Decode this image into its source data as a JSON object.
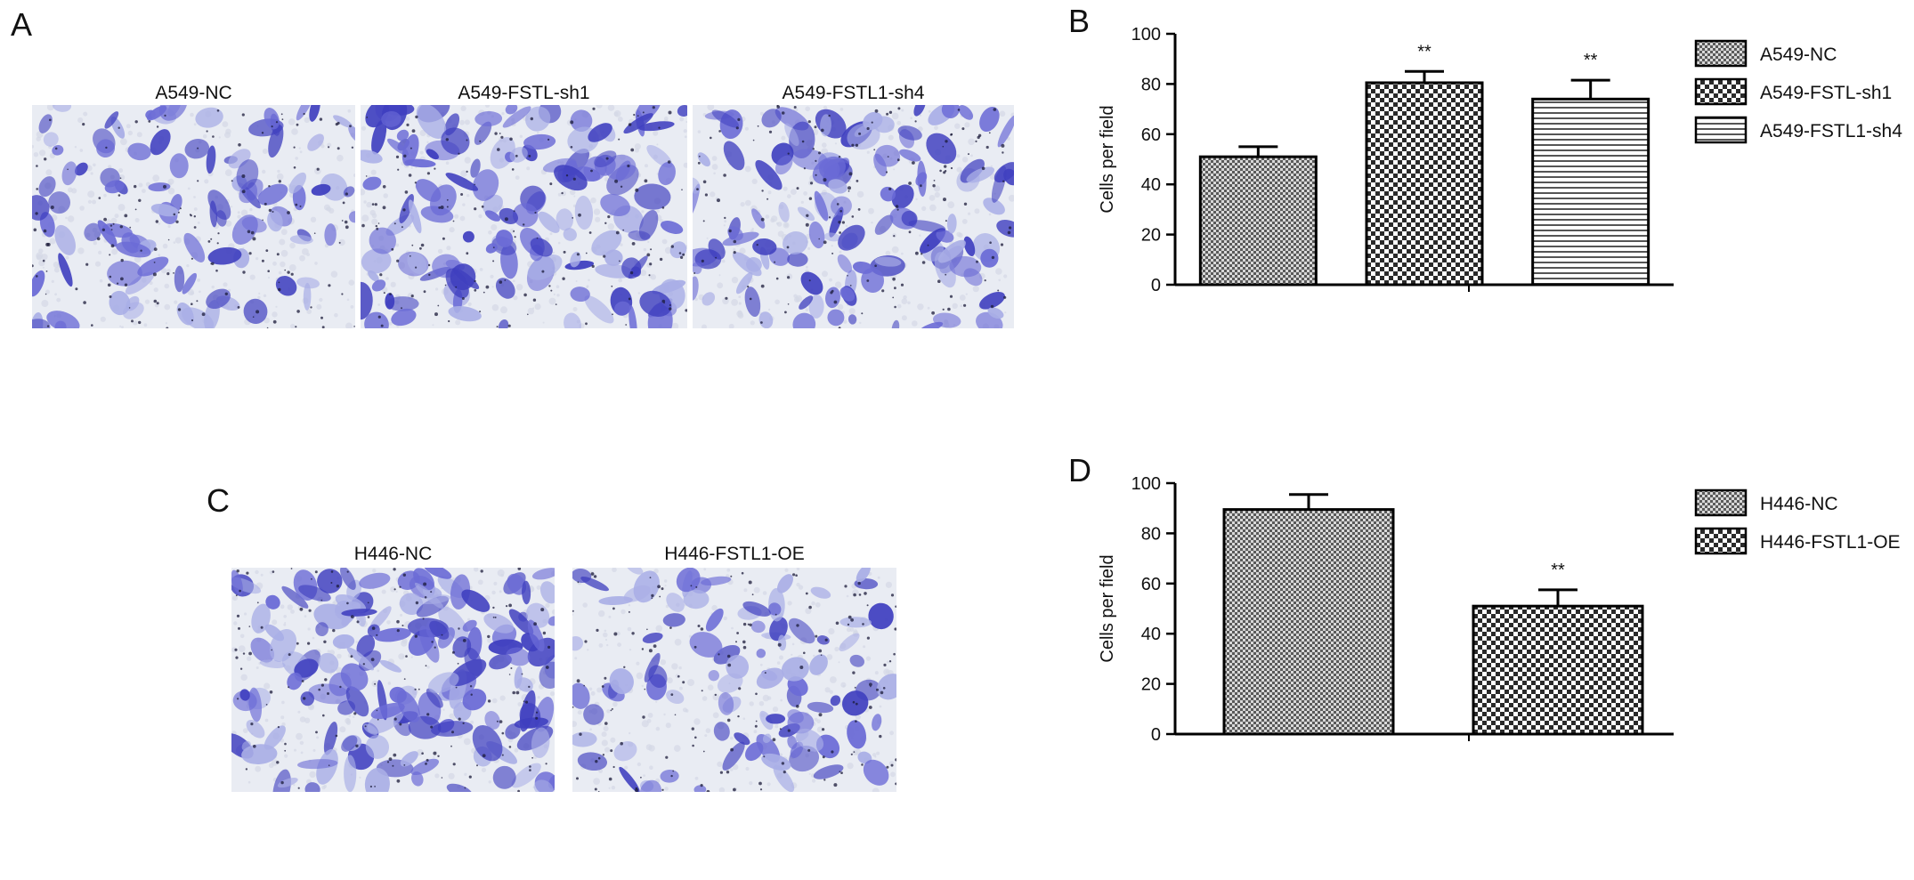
{
  "panels": {
    "A": {
      "letter": "A",
      "images": [
        {
          "caption": "A549-NC"
        },
        {
          "caption": "A549-FSTL-sh1"
        },
        {
          "caption": "A549-FSTL1-sh4"
        }
      ]
    },
    "C": {
      "letter": "C",
      "images": [
        {
          "caption": "H446-NC"
        },
        {
          "caption": "H446-FSTL1-OE"
        }
      ]
    },
    "B": {
      "letter": "B"
    },
    "D": {
      "letter": "D"
    }
  },
  "colors": {
    "stain_dark": "#3f3fbf",
    "stain_mid": "#6b6bd6",
    "stain_light": "#a9aee6",
    "background_field": "#e9ecf3",
    "bar_stroke": "#000000",
    "pattern_dark": "#2a2a2a",
    "pattern_light": "#d8d8d8"
  },
  "chart_data": [
    {
      "panel": "B",
      "type": "bar",
      "title": "",
      "xlabel": "",
      "ylabel": "Cells per field",
      "ylim": [
        0,
        100
      ],
      "yticks": [
        0,
        20,
        40,
        60,
        80,
        100
      ],
      "grid": false,
      "legend_position": "right",
      "categories": [
        "A549-NC",
        "A549-FSTL-sh1",
        "A549-FSTL1-sh4"
      ],
      "series": [
        {
          "name": "A549-NC",
          "value": 51,
          "error": 4,
          "pattern": "fine-check",
          "significance": ""
        },
        {
          "name": "A549-FSTL-sh1",
          "value": 80.5,
          "error": 4.5,
          "pattern": "coarse-check",
          "significance": "**"
        },
        {
          "name": "A549-FSTL1-sh4",
          "value": 74,
          "error": 7.5,
          "pattern": "horizontal-lines",
          "significance": "**"
        }
      ]
    },
    {
      "panel": "D",
      "type": "bar",
      "title": "",
      "xlabel": "",
      "ylabel": "Cells per field",
      "ylim": [
        0,
        100
      ],
      "yticks": [
        0,
        20,
        40,
        60,
        80,
        100
      ],
      "grid": false,
      "legend_position": "right",
      "categories": [
        "H446-NC",
        "H446-FSTL1-OE"
      ],
      "series": [
        {
          "name": "H446-NC",
          "value": 89.5,
          "error": 6,
          "pattern": "fine-check",
          "significance": ""
        },
        {
          "name": "H446-FSTL1-OE",
          "value": 51,
          "error": 6.5,
          "pattern": "coarse-check",
          "significance": "**"
        }
      ]
    }
  ]
}
